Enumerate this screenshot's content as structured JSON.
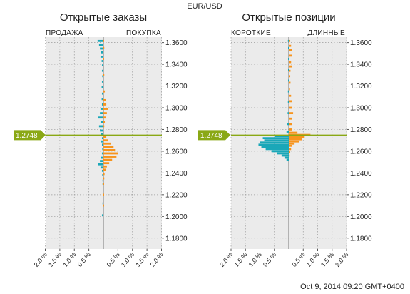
{
  "title": "EUR/USD",
  "timestamp": "Oct 9, 2014 09:20 GMT+0400",
  "current_price_label": "1.2748",
  "colors": {
    "sell": "#1aa7b8",
    "buy": "#f7941d",
    "price_line": "#8aa815",
    "panel_bg": "#ebebeb",
    "grid": "#9a9a9a"
  },
  "chart_data": [
    {
      "type": "bar",
      "title": "Открытые заказы",
      "left_label": "ПРОДАЖА",
      "right_label": "ПОКУПКА",
      "ylim": [
        1.17,
        1.365
      ],
      "y_ticks": [
        "1.3600",
        "1.3400",
        "1.3200",
        "1.3000",
        "1.2800",
        "1.2600",
        "1.2400",
        "1.2200",
        "1.2000",
        "1.1800"
      ],
      "x_ticks": [
        "2.0 %",
        "1.5 %",
        "1.0 %",
        "0.5 %",
        "0.5 %",
        "1.0 %",
        "1.5 %",
        "2.0 %"
      ],
      "current_price": 1.2748,
      "series": [
        {
          "name": "ПРОДАЖА",
          "side": "left",
          "points": [
            [
              1.3615,
              0.2
            ],
            [
              1.358,
              0.15
            ],
            [
              1.3545,
              0.12
            ],
            [
              1.351,
              0.08
            ],
            [
              1.347,
              0.1
            ],
            [
              1.343,
              0.06
            ],
            [
              1.339,
              0.05
            ],
            [
              1.334,
              0.05
            ],
            [
              1.329,
              0.04
            ],
            [
              1.324,
              0.05
            ],
            [
              1.319,
              0.06
            ],
            [
              1.313,
              0.05
            ],
            [
              1.308,
              0.06
            ],
            [
              1.303,
              0.05
            ],
            [
              1.299,
              0.1
            ],
            [
              1.295,
              0.12
            ],
            [
              1.291,
              0.18
            ],
            [
              1.287,
              0.1
            ],
            [
              1.283,
              0.15
            ],
            [
              1.279,
              0.12
            ],
            [
              1.276,
              0.08
            ],
            [
              1.272,
              0.05
            ],
            [
              1.269,
              0.08
            ],
            [
              1.266,
              0.05
            ],
            [
              1.262,
              0.04
            ],
            [
              1.258,
              0.05
            ],
            [
              1.254,
              0.08
            ],
            [
              1.251,
              0.12
            ],
            [
              1.248,
              0.18
            ],
            [
              1.245,
              0.1
            ],
            [
              1.242,
              0.05
            ],
            [
              1.238,
              0.04
            ],
            [
              1.233,
              0.03
            ],
            [
              1.23,
              0.03
            ],
            [
              1.225,
              0.02
            ],
            [
              1.22,
              0.02
            ],
            [
              1.212,
              0.03
            ],
            [
              1.201,
              0.05
            ]
          ]
        },
        {
          "name": "ПОКУПКА",
          "side": "right",
          "points": [
            [
              1.3615,
              0.02
            ],
            [
              1.355,
              0.03
            ],
            [
              1.345,
              0.02
            ],
            [
              1.33,
              0.03
            ],
            [
              1.315,
              0.05
            ],
            [
              1.307,
              0.08
            ],
            [
              1.303,
              0.1
            ],
            [
              1.299,
              0.15
            ],
            [
              1.295,
              0.12
            ],
            [
              1.291,
              0.08
            ],
            [
              1.287,
              0.05
            ],
            [
              1.283,
              0.03
            ],
            [
              1.273,
              0.1
            ],
            [
              1.27,
              0.15
            ],
            [
              1.267,
              0.25
            ],
            [
              1.264,
              0.35
            ],
            [
              1.261,
              0.4
            ],
            [
              1.258,
              0.5
            ],
            [
              1.255,
              0.45
            ],
            [
              1.252,
              0.3
            ],
            [
              1.249,
              0.2
            ],
            [
              1.246,
              0.12
            ],
            [
              1.243,
              0.08
            ],
            [
              1.239,
              0.04
            ],
            [
              1.235,
              0.03
            ],
            [
              1.23,
              0.02
            ],
            [
              1.22,
              0.02
            ],
            [
              1.21,
              0.02
            ]
          ]
        }
      ]
    },
    {
      "type": "bar",
      "title": "Открытые позиции",
      "left_label": "КОРОТКИЕ",
      "right_label": "ДЛИННЫЕ",
      "ylim": [
        1.17,
        1.365
      ],
      "y_ticks": [
        "1.3600",
        "1.3400",
        "1.3200",
        "1.3000",
        "1.2800",
        "1.2600",
        "1.2400",
        "1.2200",
        "1.2000",
        "1.1800"
      ],
      "x_ticks": [
        "2.0 %",
        "1.5 %",
        "1.0 %",
        "0.5 %",
        "0.5 %",
        "1.0 %",
        "1.5 %",
        "2.0 %"
      ],
      "current_price": 1.2748,
      "series": [
        {
          "name": "КОРОТКИЕ",
          "side": "left",
          "points": [
            [
              1.3615,
              0.03
            ],
            [
              1.355,
              0.02
            ],
            [
              1.345,
              0.02
            ],
            [
              1.335,
              0.02
            ],
            [
              1.325,
              0.02
            ],
            [
              1.315,
              0.03
            ],
            [
              1.305,
              0.03
            ],
            [
              1.295,
              0.04
            ],
            [
              1.285,
              0.05
            ],
            [
              1.278,
              0.08
            ],
            [
              1.274,
              0.5
            ],
            [
              1.272,
              0.9
            ],
            [
              1.27,
              0.85
            ],
            [
              1.268,
              1.0
            ],
            [
              1.266,
              1.05
            ],
            [
              1.264,
              0.95
            ],
            [
              1.262,
              0.8
            ],
            [
              1.26,
              0.6
            ],
            [
              1.258,
              0.4
            ],
            [
              1.256,
              0.25
            ],
            [
              1.254,
              0.15
            ],
            [
              1.252,
              0.08
            ]
          ]
        },
        {
          "name": "ДЛИННЫЕ",
          "side": "right",
          "points": [
            [
              1.3615,
              0.05
            ],
            [
              1.357,
              0.08
            ],
            [
              1.353,
              0.1
            ],
            [
              1.348,
              0.12
            ],
            [
              1.342,
              0.08
            ],
            [
              1.338,
              0.1
            ],
            [
              1.334,
              0.06
            ],
            [
              1.329,
              0.05
            ],
            [
              1.323,
              0.06
            ],
            [
              1.317,
              0.04
            ],
            [
              1.311,
              0.08
            ],
            [
              1.306,
              0.1
            ],
            [
              1.3,
              0.12
            ],
            [
              1.295,
              0.15
            ],
            [
              1.29,
              0.12
            ],
            [
              1.285,
              0.1
            ],
            [
              1.28,
              0.12
            ],
            [
              1.277,
              0.3
            ],
            [
              1.275,
              0.75
            ],
            [
              1.273,
              0.55
            ],
            [
              1.271,
              0.45
            ],
            [
              1.269,
              0.35
            ],
            [
              1.267,
              0.2
            ],
            [
              1.265,
              0.12
            ],
            [
              1.262,
              0.08
            ],
            [
              1.259,
              0.05
            ],
            [
              1.256,
              0.03
            ]
          ]
        }
      ]
    }
  ]
}
